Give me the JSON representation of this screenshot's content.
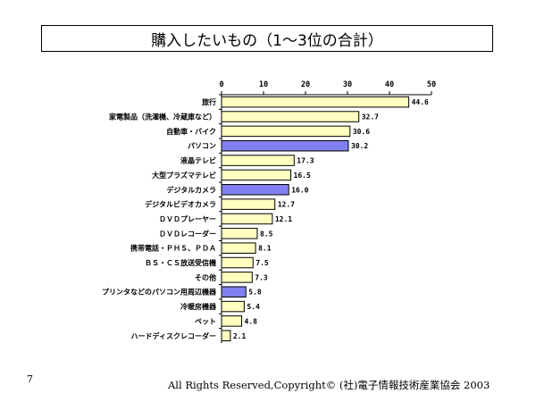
{
  "chart_data": {
    "type": "bar",
    "orientation": "horizontal",
    "title": "購入したいもの（1～3位の合計）",
    "xlim": [
      0,
      50
    ],
    "xticks": [
      0,
      10,
      20,
      30,
      40,
      50
    ],
    "grid": false,
    "categories": [
      "旅行",
      "家電製品（洗濯機、冷蔵庫など）",
      "自動車・バイク",
      "パソコン",
      "液晶テレビ",
      "大型プラズマテレビ",
      "デジタルカメラ",
      "デジタルビデオカメラ",
      "ＤＶＤプレーヤー",
      "ＤＶＤレコーダー",
      "携帯電話・ＰＨＳ、ＰＤＡ",
      "ＢＳ・ＣＳ放送受信機",
      "その他",
      "プリンタなどのパソコン用周辺機器",
      "冷暖房機器",
      "ペット",
      "ハードディスクレコーダー"
    ],
    "values": [
      44.6,
      32.7,
      30.6,
      30.2,
      17.3,
      16.5,
      16.0,
      12.7,
      12.1,
      8.5,
      8.1,
      7.5,
      7.3,
      5.8,
      5.4,
      4.8,
      2.1
    ],
    "value_labels": [
      "44.6",
      "32.7",
      "30.6",
      "30.2",
      "17.3",
      "16.5",
      "16.0",
      "12.7",
      "12.1",
      "8.5",
      "8.1",
      "7.5",
      "7.3",
      "5.8",
      "5.4",
      "4.8",
      "2.1"
    ],
    "highlighted": [
      false,
      false,
      false,
      true,
      false,
      false,
      true,
      false,
      false,
      false,
      false,
      false,
      false,
      true,
      false,
      false,
      false
    ],
    "colors": {
      "default": "#ffffc0",
      "highlight": "#8080f0",
      "stroke": "#000000"
    }
  },
  "footer": {
    "page_number": "7",
    "copyright": "All Rights Reserved,Copyright© (社)電子情報技術産業協会  2003"
  }
}
